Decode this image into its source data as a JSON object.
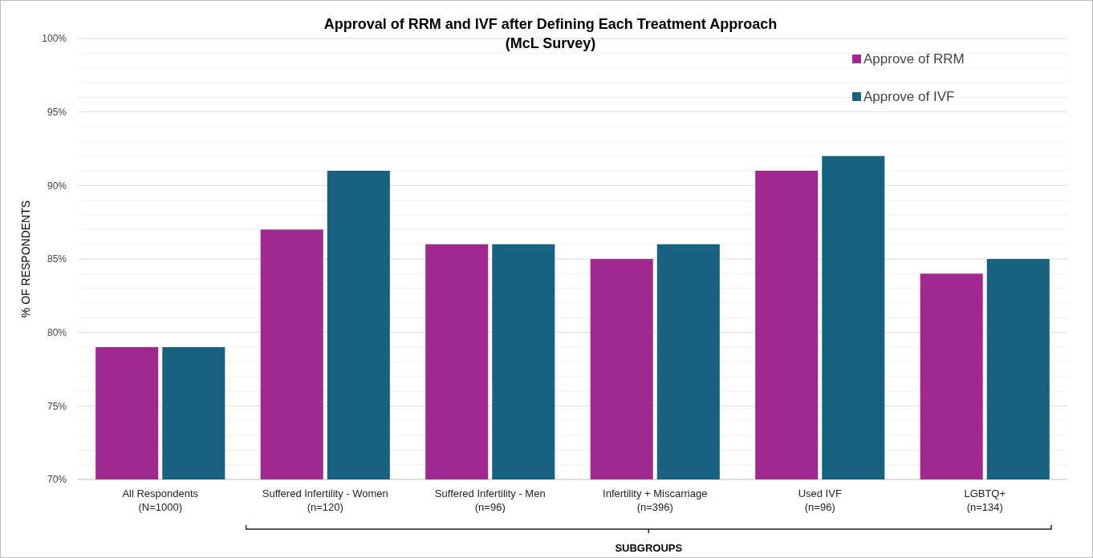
{
  "chart_data": {
    "type": "bar",
    "title": "Approval of RRM and IVF after Defining Each Treatment Approach",
    "subtitle": "(McL Survey)",
    "xlabel": "SUBGROUPS",
    "ylabel": "% OF RESPONDENTS",
    "categories": [
      "All Respondents\n(N=1000)",
      "Suffered Infertility - Women\n(n=120)",
      "Suffered Infertility - Men\n(n=96)",
      "Infertility + Miscarriage\n(n=396)",
      "Used IVF\n(n=96)",
      "LGBTQ+\n(n=134)"
    ],
    "series": [
      {
        "name": "Approve of RRM",
        "color": "#a0298f",
        "values": [
          79,
          87,
          86,
          85,
          91,
          84
        ]
      },
      {
        "name": "Approve of IVF",
        "color": "#176181",
        "values": [
          79,
          91,
          86,
          86,
          92,
          85
        ]
      }
    ],
    "ylim": [
      70,
      100
    ],
    "yticks": [
      {
        "value": 70,
        "label": "70%"
      },
      {
        "value": 71,
        "label": null
      },
      {
        "value": 72,
        "label": null
      },
      {
        "value": 73,
        "label": null
      },
      {
        "value": 74,
        "label": null
      },
      {
        "value": 75,
        "label": "75%"
      },
      {
        "value": 76,
        "label": null
      },
      {
        "value": 77,
        "label": null
      },
      {
        "value": 78,
        "label": null
      },
      {
        "value": 79,
        "label": null
      },
      {
        "value": 80,
        "label": "80%"
      },
      {
        "value": 81,
        "label": null
      },
      {
        "value": 82,
        "label": null
      },
      {
        "value": 83,
        "label": null
      },
      {
        "value": 84,
        "label": null
      },
      {
        "value": 85,
        "label": "85%"
      },
      {
        "value": 86,
        "label": null
      },
      {
        "value": 87,
        "label": null
      },
      {
        "value": 88,
        "label": null
      },
      {
        "value": 89,
        "label": null
      },
      {
        "value": 90,
        "label": "90%"
      },
      {
        "value": 91,
        "label": null
      },
      {
        "value": 92,
        "label": null
      },
      {
        "value": 93,
        "label": null
      },
      {
        "value": 94,
        "label": null
      },
      {
        "value": 95,
        "label": "95%"
      },
      {
        "value": 96,
        "label": null
      },
      {
        "value": 97,
        "label": null
      },
      {
        "value": 98,
        "label": null
      },
      {
        "value": 99,
        "label": null
      },
      {
        "value": 100,
        "label": "100%"
      }
    ],
    "grid": "y",
    "legend": "top right"
  }
}
